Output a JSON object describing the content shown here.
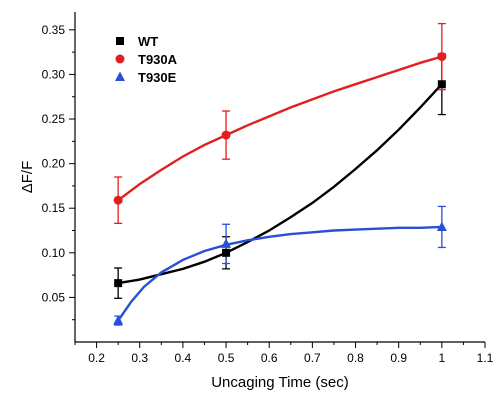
{
  "chart_data": {
    "type": "scatter",
    "xlabel": "Uncaging Time (sec)",
    "ylabel": "ΔF/F",
    "xlim": [
      0.15,
      1.1
    ],
    "ylim": [
      0.0,
      0.37
    ],
    "x_ticks": [
      0.2,
      0.3,
      0.4,
      0.5,
      0.6,
      0.7,
      0.8,
      0.9,
      1.0,
      1.1
    ],
    "y_ticks": [
      0.05,
      0.1,
      0.15,
      0.2,
      0.25,
      0.3,
      0.35
    ],
    "legend_position": "top-left",
    "grid": false,
    "series": [
      {
        "name": "WT",
        "color": "#000000",
        "marker": "square",
        "points": [
          {
            "x": 0.25,
            "y": 0.066,
            "err": 0.017
          },
          {
            "x": 0.5,
            "y": 0.1,
            "err": 0.018
          },
          {
            "x": 1.0,
            "y": 0.289,
            "err": 0.034
          }
        ],
        "fit": [
          {
            "x": 0.25,
            "y": 0.066
          },
          {
            "x": 0.3,
            "y": 0.07
          },
          {
            "x": 0.35,
            "y": 0.076
          },
          {
            "x": 0.4,
            "y": 0.082
          },
          {
            "x": 0.45,
            "y": 0.09
          },
          {
            "x": 0.5,
            "y": 0.1
          },
          {
            "x": 0.55,
            "y": 0.112
          },
          {
            "x": 0.6,
            "y": 0.125
          },
          {
            "x": 0.65,
            "y": 0.14
          },
          {
            "x": 0.7,
            "y": 0.156
          },
          {
            "x": 0.75,
            "y": 0.174
          },
          {
            "x": 0.8,
            "y": 0.194
          },
          {
            "x": 0.85,
            "y": 0.215
          },
          {
            "x": 0.9,
            "y": 0.238
          },
          {
            "x": 0.95,
            "y": 0.263
          },
          {
            "x": 1.0,
            "y": 0.289
          }
        ]
      },
      {
        "name": "T930A",
        "color": "#e02020",
        "marker": "circle",
        "points": [
          {
            "x": 0.25,
            "y": 0.159,
            "err": 0.026
          },
          {
            "x": 0.5,
            "y": 0.232,
            "err": 0.027
          },
          {
            "x": 1.0,
            "y": 0.32,
            "err": 0.037
          }
        ],
        "fit": [
          {
            "x": 0.25,
            "y": 0.159
          },
          {
            "x": 0.3,
            "y": 0.177
          },
          {
            "x": 0.35,
            "y": 0.193
          },
          {
            "x": 0.4,
            "y": 0.208
          },
          {
            "x": 0.45,
            "y": 0.221
          },
          {
            "x": 0.5,
            "y": 0.232
          },
          {
            "x": 0.55,
            "y": 0.243
          },
          {
            "x": 0.6,
            "y": 0.253
          },
          {
            "x": 0.65,
            "y": 0.263
          },
          {
            "x": 0.7,
            "y": 0.272
          },
          {
            "x": 0.75,
            "y": 0.281
          },
          {
            "x": 0.8,
            "y": 0.289
          },
          {
            "x": 0.85,
            "y": 0.297
          },
          {
            "x": 0.9,
            "y": 0.305
          },
          {
            "x": 0.95,
            "y": 0.313
          },
          {
            "x": 1.0,
            "y": 0.32
          }
        ]
      },
      {
        "name": "T930E",
        "color": "#2a4fd6",
        "marker": "triangle",
        "points": [
          {
            "x": 0.25,
            "y": 0.024,
            "err": 0.005
          },
          {
            "x": 0.5,
            "y": 0.11,
            "err": 0.022
          },
          {
            "x": 1.0,
            "y": 0.129,
            "err": 0.023
          }
        ],
        "fit": [
          {
            "x": 0.25,
            "y": 0.024
          },
          {
            "x": 0.28,
            "y": 0.045
          },
          {
            "x": 0.31,
            "y": 0.062
          },
          {
            "x": 0.35,
            "y": 0.078
          },
          {
            "x": 0.4,
            "y": 0.092
          },
          {
            "x": 0.45,
            "y": 0.102
          },
          {
            "x": 0.5,
            "y": 0.109
          },
          {
            "x": 0.55,
            "y": 0.114
          },
          {
            "x": 0.6,
            "y": 0.118
          },
          {
            "x": 0.65,
            "y": 0.121
          },
          {
            "x": 0.7,
            "y": 0.123
          },
          {
            "x": 0.75,
            "y": 0.125
          },
          {
            "x": 0.8,
            "y": 0.126
          },
          {
            "x": 0.85,
            "y": 0.127
          },
          {
            "x": 0.9,
            "y": 0.128
          },
          {
            "x": 0.95,
            "y": 0.128
          },
          {
            "x": 1.0,
            "y": 0.129
          }
        ]
      }
    ]
  }
}
